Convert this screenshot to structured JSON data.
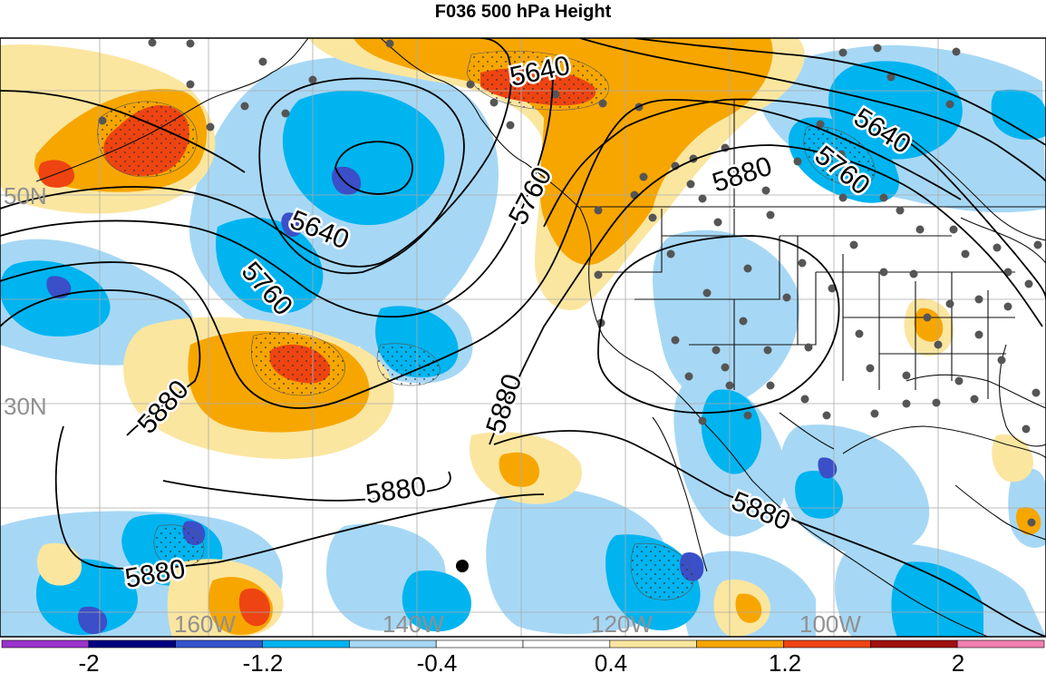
{
  "title": "F036 500 hPa Height",
  "latitude_labels": [
    "50N",
    "30N"
  ],
  "longitude_labels": [
    "160W",
    "140W",
    "120W",
    "100W"
  ],
  "contour_labels": [
    "5640",
    "5640",
    "5640",
    "5760",
    "5760",
    "5760",
    "5880",
    "5880",
    "5880",
    "5880",
    "5880",
    "5880"
  ],
  "colorbar": {
    "tick_labels": [
      "-2",
      "-1.2",
      "-0.4",
      "0.4",
      "1.2",
      "2"
    ],
    "colors": [
      "#9933cc",
      "#000080",
      "#3355cc",
      "#00b4f0",
      "#a6d8f5",
      "#ffffff",
      "#ffffff",
      "#fbe6a0",
      "#f7a600",
      "#ee4411",
      "#a01010",
      "#f080b0"
    ]
  },
  "shading_colors": {
    "dark_blue": "#3a4fc8",
    "blue": "#00b4f0",
    "light_blue": "#a6d8f5",
    "light_yellow": "#fbe6a0",
    "orange": "#f7a600",
    "red": "#ee4411"
  }
}
